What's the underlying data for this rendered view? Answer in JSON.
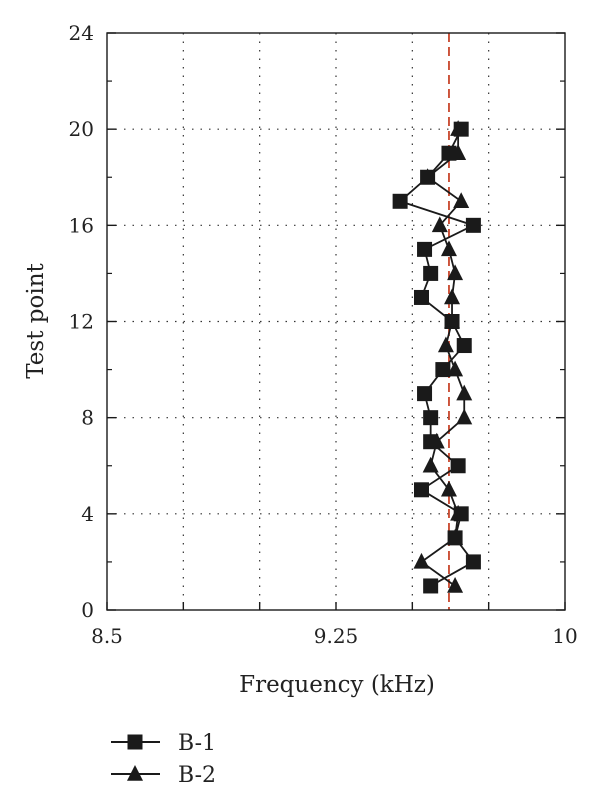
{
  "chart_data": {
    "type": "line",
    "xlabel": "Frequency (kHz)",
    "ylabel": "Test point",
    "xlim": [
      8.5,
      10
    ],
    "ylim": [
      0,
      24
    ],
    "x_ticks": [
      8.5,
      8.75,
      9,
      9.25,
      9.5,
      9.75,
      10
    ],
    "x_tick_labels": [
      "8.5",
      "",
      "",
      "9.25",
      "",
      "",
      "10"
    ],
    "y_ticks": [
      0,
      4,
      8,
      12,
      16,
      20,
      24
    ],
    "y_tick_labels": [
      "0",
      "4",
      "8",
      "12",
      "16",
      "20",
      "24"
    ],
    "grid": "dotted",
    "reference_line": {
      "x": 9.62,
      "style": "dashed",
      "color": "#c8462b"
    },
    "legend_position": "bottom-left",
    "series": [
      {
        "name": "B-1",
        "marker": "square",
        "color": "#1a1a1a",
        "x": [
          9.56,
          9.7,
          9.64,
          9.66,
          9.53,
          9.65,
          9.56,
          9.56,
          9.54,
          9.6,
          9.67,
          9.63,
          9.53,
          9.56,
          9.54,
          9.7,
          9.46,
          9.55,
          9.62,
          9.66
        ],
        "y": [
          1,
          2,
          3,
          4,
          5,
          6,
          7,
          8,
          9,
          10,
          11,
          12,
          13,
          14,
          15,
          16,
          17,
          18,
          19,
          20
        ]
      },
      {
        "name": "B-2",
        "marker": "triangle",
        "color": "#1a1a1a",
        "x": [
          9.64,
          9.53,
          9.64,
          9.65,
          9.62,
          9.56,
          9.58,
          9.67,
          9.67,
          9.64,
          9.61,
          9.63,
          9.63,
          9.64,
          9.62,
          9.59,
          9.66,
          9.55,
          9.65,
          9.65
        ],
        "y": [
          1,
          2,
          3,
          4,
          5,
          6,
          7,
          8,
          9,
          10,
          11,
          12,
          13,
          14,
          15,
          16,
          17,
          18,
          19,
          20
        ]
      }
    ]
  }
}
